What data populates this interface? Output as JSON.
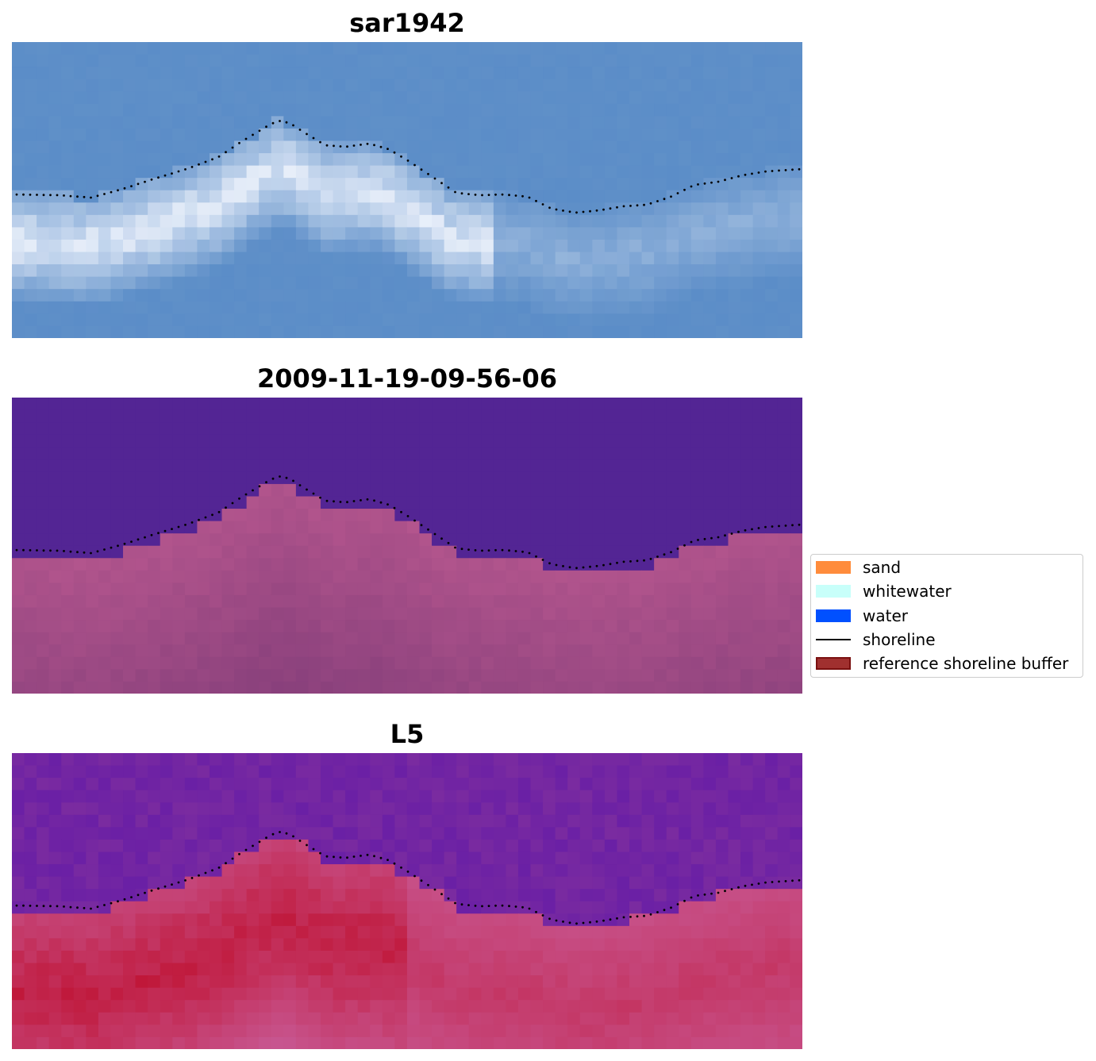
{
  "panels": [
    {
      "title": "sar1942",
      "style": "sar"
    },
    {
      "title": "2009-11-19-09-56-06",
      "style": "classified"
    },
    {
      "title": "L5",
      "style": "index"
    }
  ],
  "legend": {
    "items": [
      {
        "label": "sand",
        "kind": "patch",
        "color": "#ff8c3c"
      },
      {
        "label": "whitewater",
        "kind": "patch",
        "color": "#c8fffa"
      },
      {
        "label": "water",
        "kind": "patch",
        "color": "#0050ff"
      },
      {
        "label": "shoreline",
        "kind": "line",
        "color": "#000000"
      },
      {
        "label": "reference shoreline buffer",
        "kind": "patch",
        "color": "#a0302f",
        "edge": "#7a1010"
      }
    ]
  },
  "colors": {
    "sar_water": "#5b8dc8",
    "sar_bright": "#f4f7ff",
    "classified_water": "#532594",
    "classified_land": "#b5568e",
    "index_water": "#7a2ba0",
    "index_land": "#c0183a",
    "shoreline_dots": "#000000"
  }
}
